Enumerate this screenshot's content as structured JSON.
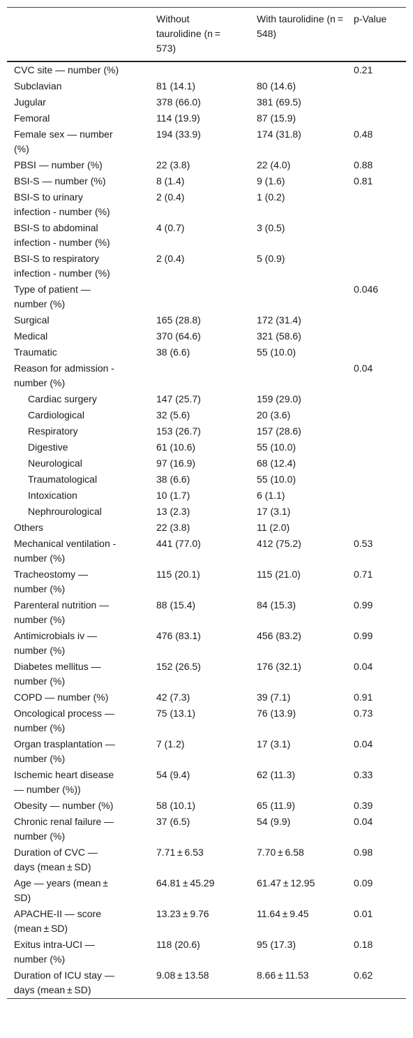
{
  "table": {
    "columns": [
      "Without taurolidine (n = 573)",
      "With taurolidine (n = 548)",
      "p-Value"
    ],
    "rows": [
      [
        "CVC site — number (%)",
        null,
        null,
        "0.21"
      ],
      [
        "Subclavian",
        "81 (14.1)",
        "80 (14.6)",
        null
      ],
      [
        "Jugular",
        "378 (66.0)",
        "381 (69.5)",
        null
      ],
      [
        "Femoral",
        "114 (19.9)",
        "87 (15.9)",
        null
      ],
      [
        "Female sex — number (%)",
        "194 (33.9)",
        "174 (31.8)",
        "0.48"
      ],
      [
        "PBSI — number (%)",
        "22 (3.8)",
        "22 (4.0)",
        "0.88"
      ],
      [
        "BSI-S — number (%)",
        "8 (1.4)",
        "9 (1.6)",
        "0.81"
      ],
      [
        "BSI-S to urinary infection - number (%)",
        "2 (0.4)",
        "1 (0.2)",
        null
      ],
      [
        "BSI-S to abdominal infection - number (%)",
        "4 (0.7)",
        "3 (0.5)",
        null
      ],
      [
        "BSI-S to respiratory infection - number (%)",
        "2 (0.4)",
        "5 (0.9)",
        null
      ],
      [
        "Type of patient — number (%)",
        null,
        null,
        "0.046"
      ],
      [
        "Surgical",
        "165 (28.8)",
        "172 (31.4)",
        null
      ],
      [
        "Medical",
        "370 (64.6)",
        "321 (58.6)",
        null
      ],
      [
        "Traumatic",
        "38 (6.6)",
        "55 (10.0)",
        null
      ],
      [
        "Reason for admission - number (%)",
        null,
        null,
        "0.04"
      ],
      [
        "Cardiac surgery",
        "147 (25.7)",
        "159 (29.0)",
        null
      ],
      [
        "Cardiological",
        "32 (5.6)",
        "20 (3.6)",
        null
      ],
      [
        "Respiratory",
        "153 (26.7)",
        "157 (28.6)",
        null
      ],
      [
        "Digestive",
        "61 (10.6)",
        "55 (10.0)",
        null
      ],
      [
        "Neurological",
        "97 (16.9)",
        "68 (12.4)",
        null
      ],
      [
        "Traumatological",
        "38 (6.6)",
        "55 (10.0)",
        null
      ],
      [
        "Intoxication",
        "10 (1.7)",
        "6 (1.1)",
        null
      ],
      [
        "Nephrourological",
        "13 (2.3)",
        "17 (3.1)",
        null
      ],
      [
        "Others",
        "22 (3.8)",
        "11 (2.0)",
        null
      ],
      [
        "Mechanical ventilation - number (%)",
        "441 (77.0)",
        "412 (75.2)",
        "0.53"
      ],
      [
        "Tracheostomy — number (%)",
        "115 (20.1)",
        "115 (21.0)",
        "0.71"
      ],
      [
        "Parenteral nutrition — number (%)",
        "88 (15.4)",
        "84 (15.3)",
        "0.99"
      ],
      [
        "Antimicrobials iv — number (%)",
        "476 (83.1)",
        "456 (83.2)",
        "0.99"
      ],
      [
        "Diabetes mellitus — number (%)",
        "152 (26.5)",
        "176 (32.1)",
        "0.04"
      ],
      [
        "COPD — number (%)",
        "42 (7.3)",
        "39 (7.1)",
        "0.91"
      ],
      [
        "Oncological process — number (%)",
        "75 (13.1)",
        "76 (13.9)",
        "0.73"
      ],
      [
        "Organ trasplantation — number (%)",
        "7 (1.2)",
        "17 (3.1)",
        "0.04"
      ],
      [
        "Ischemic heart disease — number (%))",
        "54 (9.4)",
        "62 (11.3)",
        "0.33"
      ],
      [
        "Obesity — number (%)",
        "58 (10.1)",
        "65 (11.9)",
        "0.39"
      ],
      [
        "Chronic renal failure — number (%)",
        "37 (6.5)",
        "54 (9.9)",
        "0.04"
      ],
      [
        "Duration of CVC — days (mean ± SD)",
        "7.71 ± 6.53",
        "7.70 ± 6.58",
        "0.98"
      ],
      [
        "Age — years (mean ± SD)",
        "64.81 ± 45.29",
        "61.47 ± 12.95",
        "0.09"
      ],
      [
        "APACHE-II — score (mean ± SD)",
        "13.23 ± 9.76",
        "11.64 ± 9.45",
        "0.01"
      ],
      [
        "Exitus intra-UCI — number (%)",
        "118 (20.6)",
        "95 (17.3)",
        "0.18"
      ],
      [
        "Duration of ICU stay — days (mean ± SD)",
        "9.08 ± 13.58",
        "8.66 ± 11.53",
        "0.62"
      ]
    ]
  }
}
